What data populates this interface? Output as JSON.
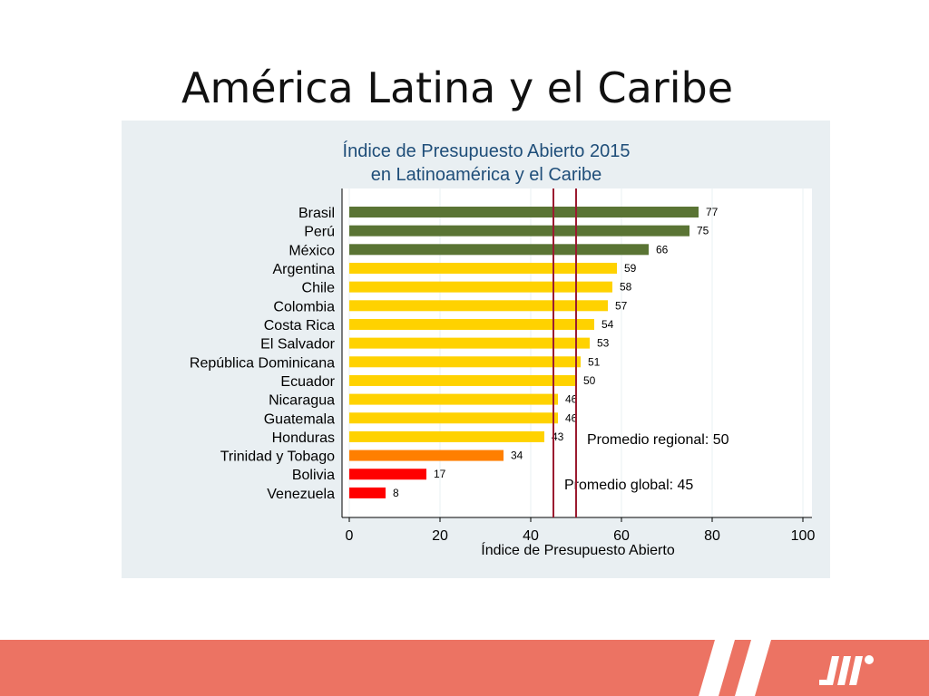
{
  "slide": {
    "title": "América Latina y el Caribe"
  },
  "colors": {
    "band_green": "#5a7434",
    "band_yellow": "#ffd200",
    "band_orange": "#ff7f00",
    "band_red": "#ff0000",
    "reference_line": "#9b1b30",
    "panel_background": "#e9eff2",
    "plot_background": "#ffffff",
    "footer_background": "#ec7363"
  },
  "footer": {
    "logo_icon": "brand-logo-icon"
  },
  "chart_data": {
    "type": "bar",
    "orientation": "horizontal",
    "title": "Índice de Presupuesto Abierto 2015",
    "subtitle": "en Latinoamérica y el Caribe",
    "xlabel": "Índice de Presupuesto Abierto",
    "ylabel": "",
    "xlim": [
      0,
      100
    ],
    "xticks": [
      0,
      20,
      40,
      60,
      80,
      100
    ],
    "grid": "vertical",
    "categories": [
      "Brasil",
      "Perú",
      "México",
      "Argentina",
      "Chile",
      "Colombia",
      "Costa Rica",
      "El Salvador",
      "República Dominicana",
      "Ecuador",
      "Nicaragua",
      "Guatemala",
      "Honduras",
      "Trinidad y Tobago",
      "Bolivia",
      "Venezuela"
    ],
    "values": [
      77,
      75,
      66,
      59,
      58,
      57,
      54,
      53,
      51,
      50,
      46,
      46,
      43,
      34,
      17,
      8
    ],
    "bar_colors": [
      "#5a7434",
      "#5a7434",
      "#5a7434",
      "#ffd200",
      "#ffd200",
      "#ffd200",
      "#ffd200",
      "#ffd200",
      "#ffd200",
      "#ffd200",
      "#ffd200",
      "#ffd200",
      "#ffd200",
      "#ff7f00",
      "#ff0000",
      "#ff0000"
    ],
    "reference_lines": [
      {
        "value": 45,
        "label": "Promedio global: 45"
      },
      {
        "value": 50,
        "label": "Promedio regional: 50"
      }
    ]
  }
}
